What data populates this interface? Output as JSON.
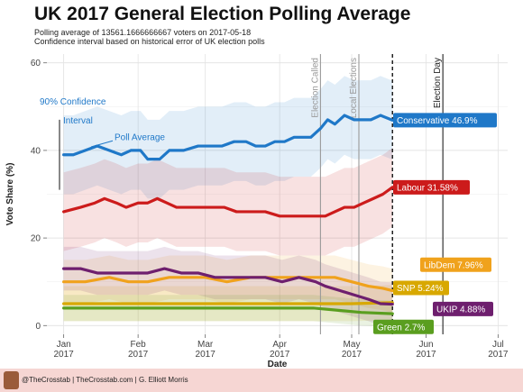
{
  "header": {
    "title": "UK 2017 General Election Polling Average",
    "subtitle_line1": "Polling average of 13561.1666666667 voters on 2017-05-18",
    "subtitle_line2": "Confidence interval based on historical error of UK election polls"
  },
  "footer": {
    "credit": "@TheCrosstab | TheCrosstab.com | G. Elliott Morris"
  },
  "chart_data": {
    "type": "line",
    "title": "UK 2017 General Election Polling Average",
    "xlabel": "Date",
    "ylabel": "Vote Share (%)",
    "xlim": [
      "2016-12-25",
      "2017-07-05"
    ],
    "ylim": [
      -2,
      62
    ],
    "y_ticks": [
      0,
      20,
      40,
      60
    ],
    "x_ticks": [
      {
        "date": "2017-01-01",
        "label1": "Jan",
        "label2": "2017"
      },
      {
        "date": "2017-02-01",
        "label1": "Feb",
        "label2": "2017"
      },
      {
        "date": "2017-03-01",
        "label1": "Mar",
        "label2": "2017"
      },
      {
        "date": "2017-04-01",
        "label1": "Apr",
        "label2": "2017"
      },
      {
        "date": "2017-05-01",
        "label1": "May",
        "label2": "2017"
      },
      {
        "date": "2017-06-01",
        "label1": "Jun",
        "label2": "2017"
      },
      {
        "date": "2017-07-01",
        "label1": "Jul",
        "label2": "2017"
      }
    ],
    "grid": true,
    "event_lines": [
      {
        "date": "2017-04-18",
        "label": "Election Called",
        "style": "solid",
        "color": "#999999"
      },
      {
        "date": "2017-05-04",
        "label": "Local Elections",
        "style": "solid",
        "color": "#999999"
      },
      {
        "date": "2017-05-18",
        "label": "",
        "style": "dashed",
        "color": "#222222"
      },
      {
        "date": "2017-06-08",
        "label": "Election Day",
        "style": "solid",
        "color": "#222222"
      }
    ],
    "annotations": {
      "confidence": "90% Confidence\nInterval",
      "poll_average": "Poll Average"
    },
    "series": [
      {
        "name": "Conservative",
        "end_label": "Conservative 46.9%",
        "color": "#1f78c8",
        "band": 9,
        "values": [
          [
            "2017-01-01",
            39
          ],
          [
            "2017-01-05",
            39
          ],
          [
            "2017-01-10",
            40
          ],
          [
            "2017-01-15",
            41
          ],
          [
            "2017-01-20",
            40
          ],
          [
            "2017-01-25",
            39
          ],
          [
            "2017-01-29",
            40
          ],
          [
            "2017-02-02",
            40
          ],
          [
            "2017-02-05",
            38
          ],
          [
            "2017-02-10",
            38
          ],
          [
            "2017-02-14",
            40
          ],
          [
            "2017-02-20",
            40
          ],
          [
            "2017-02-26",
            41
          ],
          [
            "2017-03-03",
            41
          ],
          [
            "2017-03-08",
            41
          ],
          [
            "2017-03-13",
            42
          ],
          [
            "2017-03-18",
            42
          ],
          [
            "2017-03-22",
            41
          ],
          [
            "2017-03-26",
            41
          ],
          [
            "2017-03-30",
            42
          ],
          [
            "2017-04-03",
            42
          ],
          [
            "2017-04-07",
            43
          ],
          [
            "2017-04-10",
            43
          ],
          [
            "2017-04-14",
            43
          ],
          [
            "2017-04-18",
            45
          ],
          [
            "2017-04-21",
            47
          ],
          [
            "2017-04-24",
            46
          ],
          [
            "2017-04-28",
            48
          ],
          [
            "2017-05-02",
            47
          ],
          [
            "2017-05-05",
            47
          ],
          [
            "2017-05-09",
            47
          ],
          [
            "2017-05-13",
            48
          ],
          [
            "2017-05-18",
            46.9
          ]
        ]
      },
      {
        "name": "Labour",
        "end_label": "Labour 31.58%",
        "color": "#cc1b1b",
        "band": 9,
        "values": [
          [
            "2017-01-01",
            26
          ],
          [
            "2017-01-08",
            27
          ],
          [
            "2017-01-14",
            28
          ],
          [
            "2017-01-18",
            29
          ],
          [
            "2017-01-23",
            28
          ],
          [
            "2017-01-27",
            27
          ],
          [
            "2017-02-01",
            28
          ],
          [
            "2017-02-05",
            28
          ],
          [
            "2017-02-09",
            29
          ],
          [
            "2017-02-13",
            28
          ],
          [
            "2017-02-17",
            27
          ],
          [
            "2017-02-22",
            27
          ],
          [
            "2017-02-27",
            27
          ],
          [
            "2017-03-04",
            27
          ],
          [
            "2017-03-09",
            27
          ],
          [
            "2017-03-14",
            26
          ],
          [
            "2017-03-20",
            26
          ],
          [
            "2017-03-26",
            26
          ],
          [
            "2017-04-01",
            25
          ],
          [
            "2017-04-08",
            25
          ],
          [
            "2017-04-15",
            25
          ],
          [
            "2017-04-20",
            25
          ],
          [
            "2017-04-24",
            26
          ],
          [
            "2017-04-28",
            27
          ],
          [
            "2017-05-02",
            27
          ],
          [
            "2017-05-06",
            28
          ],
          [
            "2017-05-10",
            29
          ],
          [
            "2017-05-14",
            30
          ],
          [
            "2017-05-18",
            31.58
          ]
        ]
      },
      {
        "name": "LibDem",
        "end_label": "LibDem 7.96%",
        "color": "#f0a21c",
        "band": 5,
        "values": [
          [
            "2017-01-01",
            10
          ],
          [
            "2017-01-10",
            10
          ],
          [
            "2017-01-20",
            11
          ],
          [
            "2017-01-28",
            10
          ],
          [
            "2017-02-05",
            10
          ],
          [
            "2017-02-14",
            11
          ],
          [
            "2017-02-22",
            11
          ],
          [
            "2017-03-01",
            11
          ],
          [
            "2017-03-10",
            10
          ],
          [
            "2017-03-20",
            11
          ],
          [
            "2017-03-30",
            11
          ],
          [
            "2017-04-08",
            11
          ],
          [
            "2017-04-16",
            11
          ],
          [
            "2017-04-24",
            11
          ],
          [
            "2017-05-01",
            10
          ],
          [
            "2017-05-08",
            9
          ],
          [
            "2017-05-14",
            8.5
          ],
          [
            "2017-05-18",
            7.96
          ]
        ]
      },
      {
        "name": "SNP",
        "end_label": "SNP 5.24%",
        "color": "#d8a800",
        "band": 4,
        "values": [
          [
            "2017-01-01",
            5
          ],
          [
            "2017-01-15",
            5
          ],
          [
            "2017-02-01",
            5
          ],
          [
            "2017-02-15",
            5
          ],
          [
            "2017-03-01",
            5
          ],
          [
            "2017-03-15",
            5
          ],
          [
            "2017-04-01",
            5
          ],
          [
            "2017-04-15",
            5
          ],
          [
            "2017-05-01",
            5
          ],
          [
            "2017-05-18",
            5.24
          ]
        ]
      },
      {
        "name": "UKIP",
        "end_label": "UKIP 4.88%",
        "color": "#6e1f6e",
        "band": 5,
        "values": [
          [
            "2017-01-01",
            13
          ],
          [
            "2017-01-08",
            13
          ],
          [
            "2017-01-15",
            12
          ],
          [
            "2017-01-22",
            12
          ],
          [
            "2017-01-29",
            12
          ],
          [
            "2017-02-05",
            12
          ],
          [
            "2017-02-12",
            13
          ],
          [
            "2017-02-19",
            12
          ],
          [
            "2017-02-26",
            12
          ],
          [
            "2017-03-05",
            11
          ],
          [
            "2017-03-12",
            11
          ],
          [
            "2017-03-19",
            11
          ],
          [
            "2017-03-26",
            11
          ],
          [
            "2017-04-02",
            10
          ],
          [
            "2017-04-09",
            11
          ],
          [
            "2017-04-16",
            10
          ],
          [
            "2017-04-20",
            9
          ],
          [
            "2017-04-26",
            8
          ],
          [
            "2017-05-02",
            7
          ],
          [
            "2017-05-08",
            6
          ],
          [
            "2017-05-13",
            5
          ],
          [
            "2017-05-18",
            4.88
          ]
        ]
      },
      {
        "name": "Green",
        "end_label": "Green 2.7%",
        "color": "#5a9e1f",
        "band": 3,
        "values": [
          [
            "2017-01-01",
            4
          ],
          [
            "2017-01-15",
            4
          ],
          [
            "2017-02-01",
            4
          ],
          [
            "2017-02-15",
            4
          ],
          [
            "2017-03-01",
            4
          ],
          [
            "2017-03-15",
            4
          ],
          [
            "2017-04-01",
            4
          ],
          [
            "2017-04-15",
            4
          ],
          [
            "2017-04-25",
            3.5
          ],
          [
            "2017-05-05",
            3
          ],
          [
            "2017-05-18",
            2.7
          ]
        ]
      }
    ]
  }
}
